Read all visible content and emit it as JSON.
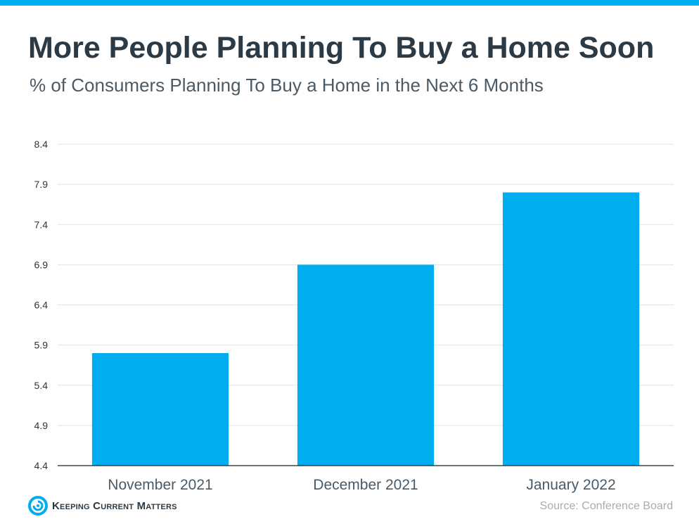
{
  "header": {
    "title": "More People Planning To Buy a Home Soon",
    "subtitle": "% of Consumers Planning To Buy a Home in the Next 6 Months"
  },
  "colors": {
    "accent": "#00adee",
    "bar": "#00adee",
    "grid": "#e3e3e3",
    "axis": "#222222"
  },
  "chart_data": {
    "type": "bar",
    "title": "More People Planning To Buy a Home Soon",
    "subtitle": "% of Consumers Planning To Buy a Home in the Next 6 Months",
    "categories": [
      "November 2021",
      "December 2021",
      "January 2022"
    ],
    "values": [
      5.8,
      6.9,
      7.8
    ],
    "yticks": [
      "8.4",
      "7.9",
      "7.4",
      "6.9",
      "6.4",
      "5.9",
      "5.4",
      "4.9",
      "4.4"
    ],
    "ylim": [
      4.4,
      8.4
    ],
    "xlabel": "",
    "ylabel": "",
    "grid": true,
    "legend": "none"
  },
  "footer": {
    "brand": "Keeping Current Matters",
    "brand_icon": "kcm-swirl-logo",
    "source": "Source: Conference Board"
  }
}
